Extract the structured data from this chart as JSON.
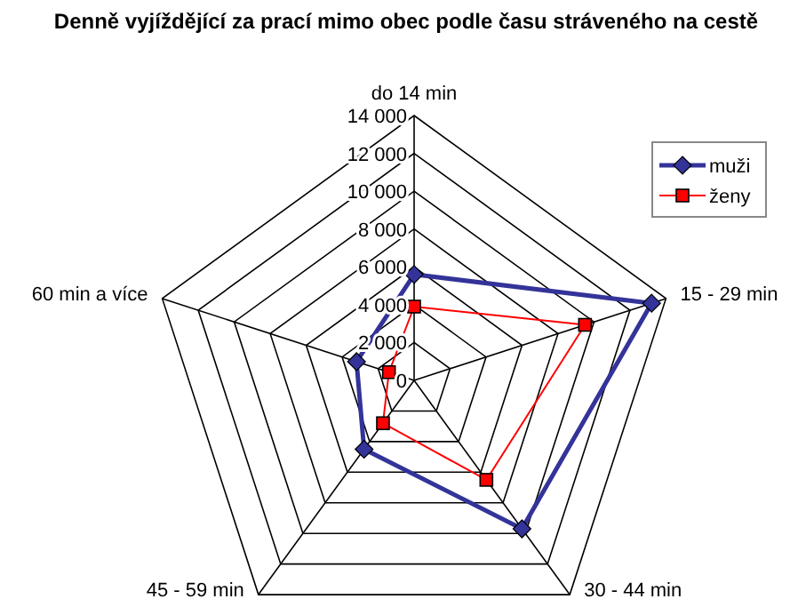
{
  "chart_data": {
    "type": "radar",
    "title": "Denně vyjíždějící za prací mimo obec podle času stráveného na cestě",
    "categories": [
      "do 14 min",
      "15 - 29 min",
      "30 - 44 min",
      "45 - 59 min",
      "60 min a více"
    ],
    "series": [
      {
        "name": "muži",
        "color": "#333399",
        "values": [
          5600,
          13200,
          9700,
          4500,
          3200
        ]
      },
      {
        "name": "ženy",
        "color": "#ff0000",
        "values": [
          3900,
          9500,
          6500,
          2800,
          1400
        ]
      }
    ],
    "ylim": [
      0,
      14000
    ],
    "yticks": [
      {
        "value": 0,
        "label": "0"
      },
      {
        "value": 2000,
        "label": "2 000"
      },
      {
        "value": 4000,
        "label": "4 000"
      },
      {
        "value": 6000,
        "label": "6 000"
      },
      {
        "value": 8000,
        "label": "8 000"
      },
      {
        "value": 10000,
        "label": "10 000"
      },
      {
        "value": 12000,
        "label": "12 000"
      },
      {
        "value": 14000,
        "label": "14 000"
      }
    ],
    "grid": true,
    "legend": "top right",
    "marker": "diamond"
  }
}
